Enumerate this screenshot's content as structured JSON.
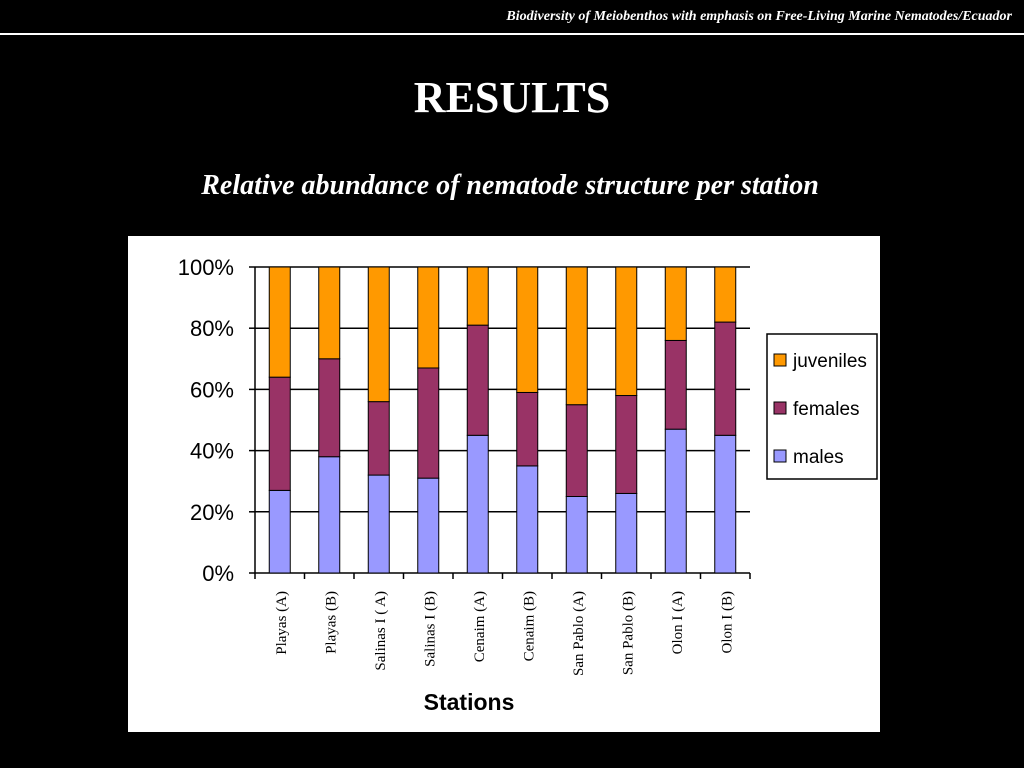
{
  "header": {
    "text": "Biodiversity of Meiobenthos with emphasis on Free-Living Marine Nematodes/Ecuador"
  },
  "title": "RESULTS",
  "subtitle": "Relative abundance of nematode structure per station",
  "chart_data": {
    "type": "bar",
    "stacked": "percent",
    "categories": [
      "Playas (A)",
      "Playas (B)",
      "Salinas I ( A)",
      "Salinas I (B)",
      "Cenaim (A)",
      "Cenaim (B)",
      "San Pablo (A)",
      "San Pablo (B)",
      "Olon I (A)",
      "Olon I (B)"
    ],
    "series": [
      {
        "name": "males",
        "color": "#9999FF",
        "values": [
          27,
          38,
          32,
          31,
          45,
          35,
          25,
          26,
          47,
          45
        ]
      },
      {
        "name": "females",
        "color": "#993366",
        "values": [
          37,
          32,
          24,
          36,
          36,
          24,
          30,
          32,
          29,
          37
        ]
      },
      {
        "name": "juveniles",
        "color": "#FF9900",
        "values": [
          36,
          30,
          44,
          33,
          19,
          41,
          45,
          42,
          24,
          18
        ]
      }
    ],
    "xlabel": "Stations",
    "ylabel": "",
    "ylim": [
      0,
      100
    ],
    "yticks": [
      "0%",
      "20%",
      "40%",
      "60%",
      "80%",
      "100%"
    ],
    "grid": true,
    "legend_position": "right",
    "legend_order": [
      "juveniles",
      "females",
      "males"
    ]
  }
}
